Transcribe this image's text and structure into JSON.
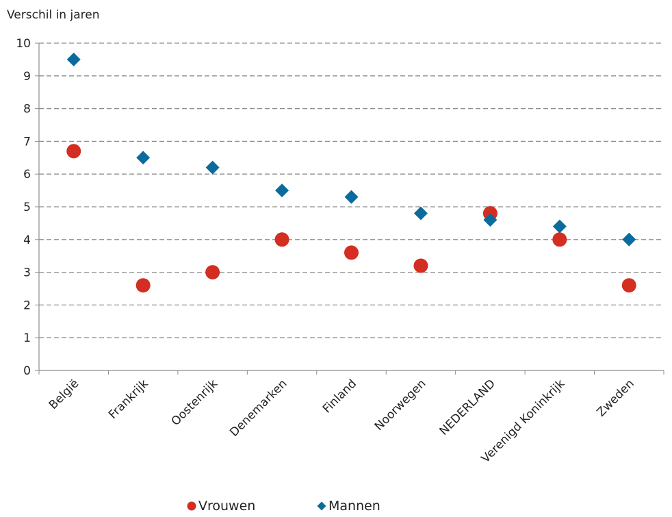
{
  "chart_data": {
    "type": "scatter",
    "title": "",
    "xlabel": "",
    "ylabel": "Verschil in jaren",
    "ylim": [
      0,
      10
    ],
    "yticks": [
      "0",
      "1",
      "2",
      "3",
      "4",
      "5",
      "6",
      "7",
      "8",
      "9",
      "10"
    ],
    "grid": true,
    "legend_position": "bottom",
    "categories": [
      "België",
      "Frankrijk",
      "Oostenrijk",
      "Denemarken",
      "Finland",
      "Noorwegen",
      "NEDERLAND",
      "Verenigd Koninkrijk",
      "Zweden"
    ],
    "series": [
      {
        "name": "Vrouwen",
        "marker": "circle",
        "color": "#d42e22",
        "values": [
          6.7,
          2.6,
          3.0,
          4.0,
          3.6,
          3.2,
          4.8,
          4.0,
          2.6
        ]
      },
      {
        "name": "Mannen",
        "marker": "diamond",
        "color": "#0b6b9c",
        "values": [
          9.5,
          6.5,
          6.2,
          5.5,
          5.3,
          4.8,
          4.6,
          4.4,
          4.0
        ]
      }
    ]
  }
}
